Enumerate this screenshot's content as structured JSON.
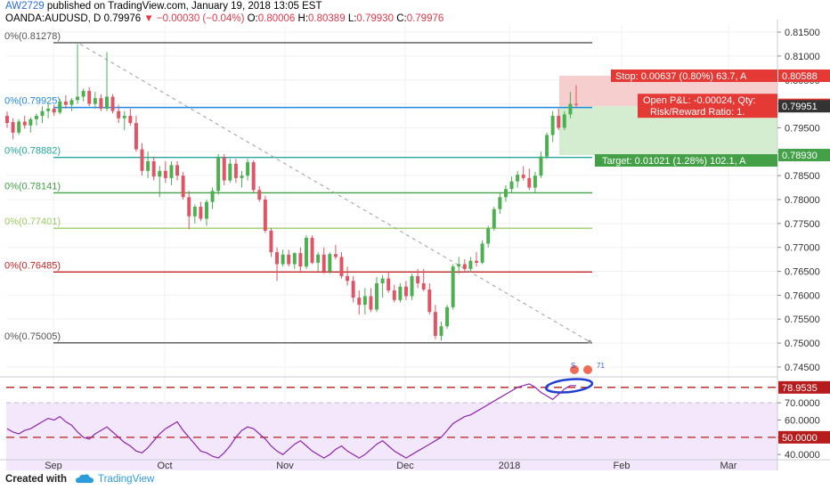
{
  "header": {
    "line1_user": "AW2729",
    "line1_text": "published on TradingView.com, January 19, 2018 13:05 EST",
    "symbol": "OANDA:AUDUSD, D",
    "last": "0.79976",
    "change": "−0.00030 (−0.04%)",
    "o_label": "O:",
    "o": "0.80006",
    "h_label": "H:",
    "h": "0.80389",
    "l_label": "L:",
    "l": "0.79930",
    "c_label": "C:",
    "c": "0.79976"
  },
  "footer": {
    "created_with": "Created with",
    "brand": "TradingView"
  },
  "chart_data": {
    "type": "candlestick",
    "symbol": "OANDA:AUDUSD",
    "timeframe": "D",
    "y_range": [
      0.7435,
      0.8165
    ],
    "price_ticks": [
      "0.81500",
      "0.81000",
      "0.80500",
      "0.80000",
      "0.79500",
      "0.79000",
      "0.78500",
      "0.78000",
      "0.77500",
      "0.77000",
      "0.76500",
      "0.76000",
      "0.75500",
      "0.75000",
      "0.74500"
    ],
    "time_labels": [
      "Sep",
      "Oct",
      "Nov",
      "Dec",
      "2018",
      "Feb",
      "Mar"
    ],
    "fib_levels": [
      {
        "label": "0%(0.81278)",
        "value": 0.81278,
        "color": "#555555"
      },
      {
        "label": "0%(0.79925)",
        "value": 0.79925,
        "color": "#1e88e5"
      },
      {
        "label": "0%(0.78882)",
        "value": 0.78882,
        "color": "#26a69a"
      },
      {
        "label": "0%(0.78141)",
        "value": 0.78141,
        "color": "#43a047"
      },
      {
        "label": "0%(0.77401)",
        "value": 0.77401,
        "color": "#9ccc65"
      },
      {
        "label": "0%(0.76485)",
        "value": 0.76485,
        "color": "#c62828"
      },
      {
        "label": "0%(0.75005)",
        "value": 0.75005,
        "color": "#555555"
      }
    ],
    "position": {
      "stop_label": "Stop: 0.00637 (0.80%) 63.7, A",
      "stop_price": "0.80588",
      "pnl_label": "Open P&L: -0.00024, Qty:",
      "rr_label": "Risk/Reward Ratio: 1.",
      "entry_price": "0.79951",
      "last_price": "0.79976",
      "target_label": "Target: 0.01021 (1.28%) 102.1, A",
      "target_price": "0.78930"
    },
    "rsi": {
      "ticks": [
        "70.0000",
        "60.0000",
        "50.0000",
        "40.0000"
      ],
      "upper_label": "78.9535",
      "lower_label": "50.0000",
      "y_range": [
        37,
        83
      ]
    },
    "candles": [
      [
        0.7975,
        0.7984,
        0.795,
        0.796
      ],
      [
        0.7962,
        0.797,
        0.7926,
        0.794
      ],
      [
        0.794,
        0.7968,
        0.7935,
        0.7963
      ],
      [
        0.7963,
        0.7975,
        0.7948,
        0.7955
      ],
      [
        0.7955,
        0.7972,
        0.794,
        0.7968
      ],
      [
        0.7968,
        0.798,
        0.7955,
        0.7975
      ],
      [
        0.7975,
        0.7995,
        0.796,
        0.7985
      ],
      [
        0.7985,
        0.8002,
        0.797,
        0.799
      ],
      [
        0.799,
        0.7998,
        0.7975,
        0.7982
      ],
      [
        0.7982,
        0.801,
        0.7978,
        0.8005
      ],
      [
        0.8005,
        0.8018,
        0.799,
        0.7998
      ],
      [
        0.7998,
        0.8012,
        0.7985,
        0.8008
      ],
      [
        0.8008,
        0.8125,
        0.8,
        0.8015
      ],
      [
        0.8015,
        0.8032,
        0.8005,
        0.8027
      ],
      [
        0.8027,
        0.8035,
        0.7995,
        0.8
      ],
      [
        0.8,
        0.8025,
        0.799,
        0.8012
      ],
      [
        0.8012,
        0.802,
        0.7985,
        0.799
      ],
      [
        0.799,
        0.8108,
        0.7985,
        0.8015
      ],
      [
        0.8015,
        0.802,
        0.798,
        0.7985
      ],
      [
        0.7985,
        0.7998,
        0.796,
        0.797
      ],
      [
        0.797,
        0.7985,
        0.7945,
        0.7975
      ],
      [
        0.7975,
        0.799,
        0.7955,
        0.796
      ],
      [
        0.796,
        0.7975,
        0.79,
        0.7905
      ],
      [
        0.7905,
        0.7918,
        0.785,
        0.786
      ],
      [
        0.786,
        0.79,
        0.7845,
        0.788
      ],
      [
        0.788,
        0.789,
        0.784,
        0.7848
      ],
      [
        0.7848,
        0.787,
        0.7805,
        0.786
      ],
      [
        0.786,
        0.788,
        0.7835,
        0.7845
      ],
      [
        0.7845,
        0.788,
        0.783,
        0.7872
      ],
      [
        0.7872,
        0.788,
        0.784,
        0.785
      ],
      [
        0.785,
        0.7858,
        0.78,
        0.7805
      ],
      [
        0.7805,
        0.7818,
        0.7738,
        0.7765
      ],
      [
        0.7765,
        0.779,
        0.775,
        0.7785
      ],
      [
        0.7785,
        0.7795,
        0.7755,
        0.776
      ],
      [
        0.776,
        0.78,
        0.7745,
        0.7795
      ],
      [
        0.7795,
        0.7825,
        0.778,
        0.7818
      ],
      [
        0.7818,
        0.7895,
        0.781,
        0.7888
      ],
      [
        0.7888,
        0.7895,
        0.783,
        0.784
      ],
      [
        0.784,
        0.7885,
        0.7835,
        0.7875
      ],
      [
        0.7875,
        0.7885,
        0.7835,
        0.7845
      ],
      [
        0.7845,
        0.786,
        0.7825,
        0.785
      ],
      [
        0.785,
        0.7885,
        0.784,
        0.7878
      ],
      [
        0.7878,
        0.7882,
        0.7815,
        0.782
      ],
      [
        0.782,
        0.7828,
        0.7795,
        0.78
      ],
      [
        0.78,
        0.7808,
        0.773,
        0.7735
      ],
      [
        0.7735,
        0.774,
        0.768,
        0.769
      ],
      [
        0.769,
        0.77,
        0.763,
        0.7665
      ],
      [
        0.7665,
        0.7695,
        0.766,
        0.7685
      ],
      [
        0.7685,
        0.7695,
        0.766,
        0.7665
      ],
      [
        0.7665,
        0.769,
        0.7655,
        0.7688
      ],
      [
        0.7688,
        0.77,
        0.765,
        0.766
      ],
      [
        0.766,
        0.7725,
        0.7655,
        0.772
      ],
      [
        0.772,
        0.7725,
        0.7665,
        0.7668
      ],
      [
        0.7668,
        0.769,
        0.765,
        0.7685
      ],
      [
        0.7685,
        0.77,
        0.7645,
        0.765
      ],
      [
        0.765,
        0.769,
        0.7645,
        0.7686
      ],
      [
        0.7686,
        0.7705,
        0.7675,
        0.768
      ],
      [
        0.768,
        0.769,
        0.7635,
        0.764
      ],
      [
        0.764,
        0.766,
        0.762,
        0.763
      ],
      [
        0.763,
        0.764,
        0.7585,
        0.7595
      ],
      [
        0.7595,
        0.761,
        0.756,
        0.758
      ],
      [
        0.758,
        0.7615,
        0.756,
        0.7598
      ],
      [
        0.7598,
        0.7615,
        0.7565,
        0.757
      ],
      [
        0.757,
        0.7638,
        0.7565,
        0.7625
      ],
      [
        0.7625,
        0.7642,
        0.7595,
        0.7635
      ],
      [
        0.7635,
        0.7648,
        0.7605,
        0.761
      ],
      [
        0.761,
        0.7622,
        0.7585,
        0.759
      ],
      [
        0.759,
        0.7625,
        0.7585,
        0.7618
      ],
      [
        0.7618,
        0.763,
        0.759,
        0.7598
      ],
      [
        0.7598,
        0.7645,
        0.759,
        0.764
      ],
      [
        0.764,
        0.7655,
        0.7615,
        0.7625
      ],
      [
        0.7625,
        0.7655,
        0.7608,
        0.7612
      ],
      [
        0.7612,
        0.7625,
        0.756,
        0.7565
      ],
      [
        0.7565,
        0.758,
        0.7508,
        0.7515
      ],
      [
        0.7515,
        0.7545,
        0.7505,
        0.7535
      ],
      [
        0.7535,
        0.758,
        0.753,
        0.7575
      ],
      [
        0.7575,
        0.7665,
        0.757,
        0.766
      ],
      [
        0.766,
        0.768,
        0.7645,
        0.7665
      ],
      [
        0.7665,
        0.7675,
        0.7648,
        0.7655
      ],
      [
        0.7655,
        0.768,
        0.765,
        0.7672
      ],
      [
        0.7672,
        0.769,
        0.766,
        0.7668
      ],
      [
        0.7668,
        0.7715,
        0.7665,
        0.7708
      ],
      [
        0.7708,
        0.7745,
        0.77,
        0.774
      ],
      [
        0.774,
        0.7785,
        0.7735,
        0.778
      ],
      [
        0.778,
        0.7815,
        0.777,
        0.7805
      ],
      [
        0.7805,
        0.783,
        0.7795,
        0.7822
      ],
      [
        0.7822,
        0.7848,
        0.7815,
        0.7838
      ],
      [
        0.7838,
        0.786,
        0.7825,
        0.7852
      ],
      [
        0.7852,
        0.787,
        0.784,
        0.7845
      ],
      [
        0.7845,
        0.7865,
        0.782,
        0.7825
      ],
      [
        0.7825,
        0.7858,
        0.7815,
        0.785
      ],
      [
        0.785,
        0.79,
        0.7845,
        0.789
      ],
      [
        0.789,
        0.794,
        0.7885,
        0.7935
      ],
      [
        0.7935,
        0.7985,
        0.792,
        0.7975
      ],
      [
        0.7975,
        0.799,
        0.7945,
        0.795
      ],
      [
        0.795,
        0.7985,
        0.7945,
        0.7978
      ],
      [
        0.7978,
        0.8025,
        0.797,
        0.8
      ],
      [
        0.8,
        0.8039,
        0.7993,
        0.7998
      ]
    ],
    "rsi_values": [
      55,
      53,
      52,
      54,
      55,
      57,
      59,
      61,
      60,
      62,
      59,
      57,
      53,
      50,
      49,
      52,
      54,
      56,
      53,
      50,
      47,
      45,
      42,
      41,
      44,
      48,
      52,
      55,
      57,
      59,
      54,
      50,
      46,
      42,
      41,
      39,
      38,
      41,
      45,
      50,
      54,
      56,
      55,
      52,
      49,
      45,
      42,
      40,
      43,
      46,
      48,
      45,
      42,
      40,
      38,
      40,
      43,
      45,
      42,
      40,
      38,
      40,
      43,
      46,
      48,
      45,
      42,
      40,
      38,
      40,
      42,
      44,
      46,
      48,
      50,
      54,
      58,
      60,
      62,
      63,
      65,
      67,
      69,
      71,
      73,
      75,
      77,
      79,
      80,
      81,
      79,
      76,
      74,
      72,
      75,
      78,
      80,
      80
    ]
  }
}
